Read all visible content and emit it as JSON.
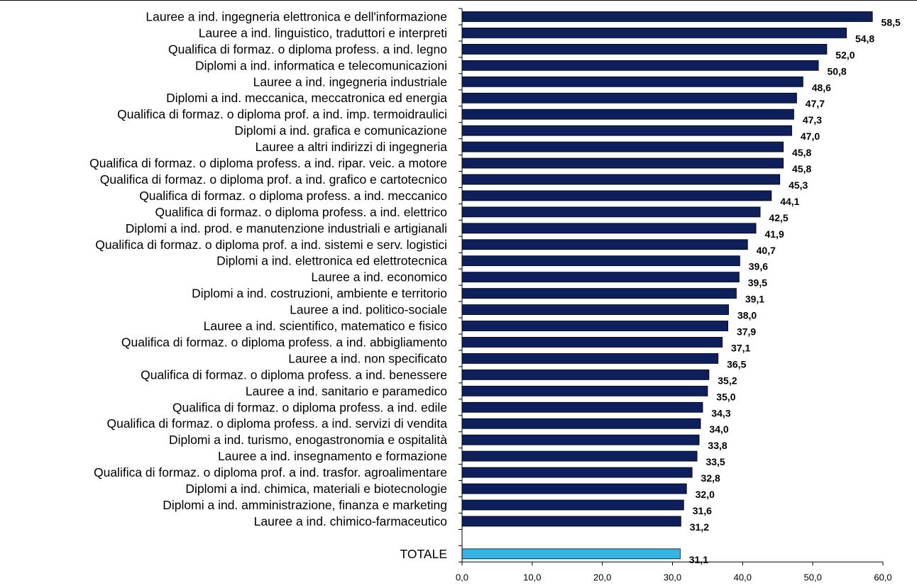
{
  "chart_data": {
    "type": "bar",
    "orientation": "horizontal",
    "title": "",
    "xlabel": "",
    "ylabel": "",
    "xlim": [
      0,
      60
    ],
    "x_ticks": [
      "0,0",
      "10,0",
      "20,0",
      "30,0",
      "40,0",
      "50,0",
      "60,0"
    ],
    "grid": false,
    "legend": "none",
    "colors": {
      "bar": "#0d1f5c",
      "total_bar": "#33b5e5"
    },
    "categories": [
      "Lauree a ind. ingegneria elettronica e dell'informazione",
      "Lauree a ind. linguistico, traduttori e interpreti",
      "Qualifica di formaz. o diploma profess. a ind. legno",
      "Diplomi a ind. informatica e telecomunicazioni",
      "Lauree a ind. ingegneria industriale",
      "Diplomi a ind. meccanica, meccatronica ed energia",
      "Qualifica di formaz. o diploma prof. a ind. imp. termoidraulici",
      "Diplomi a ind. grafica e comunicazione",
      "Lauree a altri indirizzi di ingegneria",
      "Qualifica di formaz. o diploma profess. a ind. ripar. veic. a motore",
      "Qualifica di formaz. o diploma prof. a ind. grafico e cartotecnico",
      "Qualifica di formaz. o diploma profess. a ind. meccanico",
      "Qualifica di formaz. o diploma profess. a ind. elettrico",
      "Diplomi a ind. prod. e manutenzione industriali e artigianali",
      "Qualifica di formaz. o diploma prof. a ind. sistemi e serv. logistici",
      "Diplomi a ind. elettronica ed elettrotecnica",
      "Lauree a ind. economico",
      "Diplomi a ind. costruzioni, ambiente e territorio",
      "Lauree a ind. politico-sociale",
      "Lauree a ind. scientifico, matematico e fisico",
      "Qualifica di formaz. o diploma profess. a ind. abbigliamento",
      "Lauree a ind. non specificato",
      "Qualifica di formaz. o diploma profess. a ind. benessere",
      "Lauree a ind. sanitario e paramedico",
      "Qualifica di formaz. o diploma profess. a ind. edile",
      "Qualifica di formaz. o diploma profess. a ind. servizi di vendita",
      "Diplomi a ind. turismo, enogastronomia e ospitalità",
      "Lauree a ind. insegnamento e formazione",
      "Qualifica di formaz. o diploma prof. a ind. trasfor. agroalimentare",
      "Diplomi a ind. chimica, materiali e biotecnologie",
      "Diplomi a ind. amministrazione, finanza e marketing",
      "Lauree a ind. chimico-farmaceutico"
    ],
    "values": [
      58.5,
      54.8,
      52.0,
      50.8,
      48.6,
      47.7,
      47.3,
      47.0,
      45.8,
      45.8,
      45.3,
      44.1,
      42.5,
      41.9,
      40.7,
      39.6,
      39.5,
      39.1,
      38.0,
      37.9,
      37.1,
      36.5,
      35.2,
      35.0,
      34.3,
      34.0,
      33.8,
      33.5,
      32.8,
      32.0,
      31.6,
      31.2
    ],
    "value_labels": [
      "58,5",
      "54,8",
      "52,0",
      "50,8",
      "48,6",
      "47,7",
      "47,3",
      "47,0",
      "45,8",
      "45,8",
      "45,3",
      "44,1",
      "42,5",
      "41,9",
      "40,7",
      "39,6",
      "39,5",
      "39,1",
      "38,0",
      "37,9",
      "37,1",
      "36,5",
      "35,2",
      "35,0",
      "34,3",
      "34,0",
      "33,8",
      "33,5",
      "32,8",
      "32,0",
      "31,6",
      "31,2"
    ],
    "total": {
      "label": "TOTALE",
      "value": 31.1,
      "value_label": "31,1"
    }
  }
}
